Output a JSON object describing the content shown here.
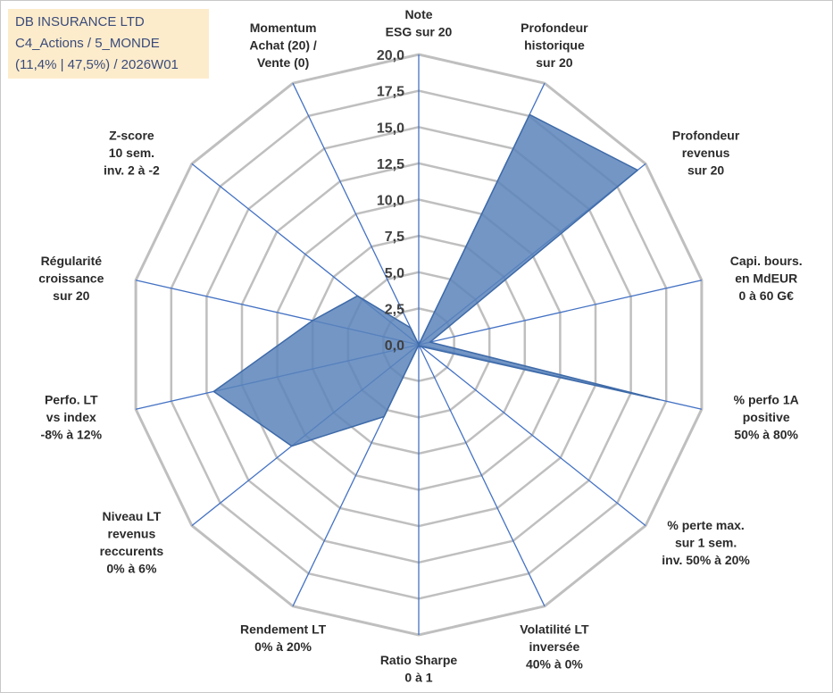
{
  "header": {
    "company": "DB INSURANCE LTD",
    "category": "C4_Actions / 5_MONDE",
    "period": "(11,4% | 47,5%) / 2026W01"
  },
  "colors": {
    "fill": "#5b84bb",
    "stroke": "#3e6aa8",
    "grid": "#bfbfbf",
    "spoke": "#4472c4",
    "box": "#fdeccc"
  },
  "chart_data": {
    "type": "radar",
    "rmin": 0,
    "rmax": 20,
    "ticks": [
      "0,0",
      "2,5",
      "5,0",
      "7,5",
      "10,0",
      "12,5",
      "15,0",
      "17,5",
      "20,0"
    ],
    "axes": [
      {
        "lines": [
          "Note",
          "ESG sur 20"
        ],
        "value": 0
      },
      {
        "lines": [
          "Profondeur",
          "historique",
          "sur 20"
        ],
        "value": 17.6
      },
      {
        "lines": [
          "Profondeur",
          "revenus",
          "sur 20"
        ],
        "value": 19.3
      },
      {
        "lines": [
          "Capi. bours.",
          "en MdEUR",
          "0 à 60 G€"
        ],
        "value": 0.8
      },
      {
        "lines": [
          "% perfo 1A",
          "positive",
          "50% à 80%"
        ],
        "value": 17.0
      },
      {
        "lines": [
          "% perte max.",
          "sur 1 sem.",
          "inv. 50% à 20%"
        ],
        "value": 0.2
      },
      {
        "lines": [
          "Volatilité LT",
          "inversée",
          "40% à 0%"
        ],
        "value": 0.1
      },
      {
        "lines": [
          "Ratio Sharpe",
          "0 à 1"
        ],
        "value": 0
      },
      {
        "lines": [
          "Rendement LT",
          "0% à 20%"
        ],
        "value": 5.5
      },
      {
        "lines": [
          "Niveau LT",
          "revenus",
          "reccurents",
          "0% à 6%"
        ],
        "value": 11.2
      },
      {
        "lines": [
          "Perfo. LT",
          "vs index",
          "-8% à 12%"
        ],
        "value": 14.5
      },
      {
        "lines": [
          "Régularité",
          "croissance",
          "sur 20"
        ],
        "value": 7.5
      },
      {
        "lines": [
          "Z-score",
          "10 sem.",
          "inv. 2 à -2"
        ],
        "value": 5.4
      },
      {
        "lines": [
          "Momentum",
          "Achat (20) /",
          "Vente (0)"
        ],
        "value": 1.3
      }
    ]
  }
}
